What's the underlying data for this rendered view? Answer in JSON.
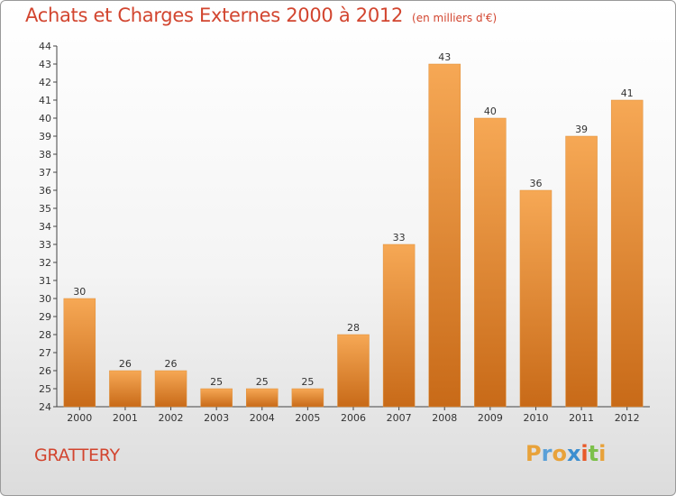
{
  "header": {
    "title": "Achats et Charges Externes 2000 à 2012",
    "subtitle": "(en milliers d'€)"
  },
  "place_name": "GRATTERY",
  "logo": {
    "letters": [
      "P",
      "r",
      "o",
      "x",
      "i",
      "t",
      "i"
    ],
    "colors": [
      "#e8a23a",
      "#5aa0d8",
      "#e8a23a",
      "#3c8ed0",
      "#e85a2a",
      "#7cc04a",
      "#e8a23a"
    ]
  },
  "chart_data": {
    "type": "bar",
    "categories": [
      "2000",
      "2001",
      "2002",
      "2003",
      "2004",
      "2005",
      "2006",
      "2007",
      "2008",
      "2009",
      "2010",
      "2011",
      "2012"
    ],
    "values": [
      30,
      26,
      26,
      25,
      25,
      25,
      28,
      33,
      43,
      40,
      36,
      39,
      41
    ],
    "title": "Achats et Charges Externes 2000 à 2012",
    "subtitle": "(en milliers d'€)",
    "xlabel": "",
    "ylabel": "",
    "ylim": [
      24,
      44
    ],
    "yticks": [
      24,
      25,
      26,
      27,
      28,
      29,
      30,
      31,
      32,
      33,
      34,
      35,
      36,
      37,
      38,
      39,
      40,
      41,
      42,
      43,
      44
    ],
    "grid": false,
    "legend": "none",
    "bar_color_top": "#f6a855",
    "bar_color_bottom": "#c86a18"
  }
}
